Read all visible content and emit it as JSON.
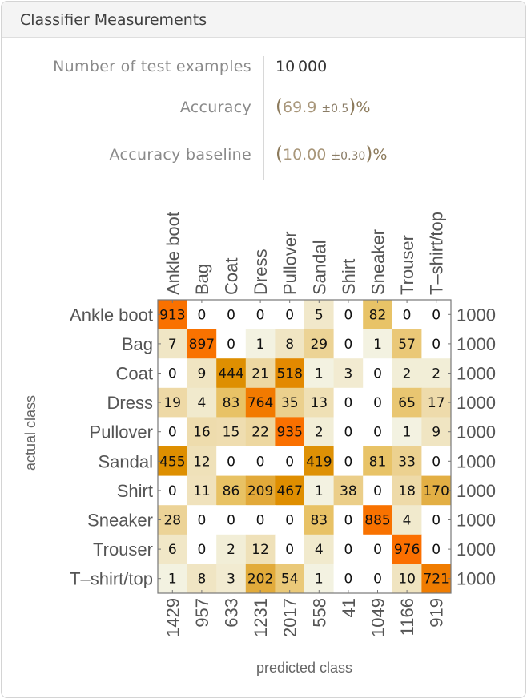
{
  "title": "Classifier Measurements",
  "stats": [
    {
      "label": "Number of test examples",
      "value": "10 000"
    },
    {
      "label": "Accuracy",
      "value": "69.9",
      "uncertainty": "0.5",
      "unit": "%"
    },
    {
      "label": "Accuracy baseline",
      "value": "10.00",
      "uncertainty": "0.30",
      "unit": "%"
    }
  ],
  "chart_data": {
    "type": "heatmap",
    "xlabel": "predicted class",
    "ylabel": "actual class",
    "classes": [
      "Ankle boot",
      "Bag",
      "Coat",
      "Dress",
      "Pullover",
      "Sandal",
      "Shirt",
      "Sneaker",
      "Trouser",
      "T–shirt/top"
    ],
    "matrix": [
      [
        913,
        0,
        0,
        0,
        0,
        5,
        0,
        82,
        0,
        0
      ],
      [
        7,
        897,
        0,
        1,
        8,
        29,
        0,
        1,
        57,
        0
      ],
      [
        0,
        9,
        444,
        21,
        518,
        1,
        3,
        0,
        2,
        2
      ],
      [
        19,
        4,
        83,
        764,
        35,
        13,
        0,
        0,
        65,
        17
      ],
      [
        0,
        16,
        15,
        22,
        935,
        2,
        0,
        0,
        1,
        9
      ],
      [
        455,
        12,
        0,
        0,
        0,
        419,
        0,
        81,
        33,
        0
      ],
      [
        0,
        11,
        86,
        209,
        467,
        1,
        38,
        0,
        18,
        170
      ],
      [
        28,
        0,
        0,
        0,
        0,
        83,
        0,
        885,
        4,
        0
      ],
      [
        6,
        0,
        2,
        12,
        0,
        4,
        0,
        0,
        976,
        0
      ],
      [
        1,
        8,
        3,
        202,
        54,
        1,
        0,
        0,
        10,
        721
      ]
    ],
    "row_totals": [
      1000,
      1000,
      1000,
      1000,
      1000,
      1000,
      1000,
      1000,
      1000,
      1000
    ],
    "column_totals": [
      1429,
      957,
      633,
      1231,
      2017,
      558,
      41,
      1049,
      1166,
      919
    ],
    "color_stops": [
      [
        0,
        "#ffffff"
      ],
      [
        1,
        "#f3f2e1"
      ],
      [
        10,
        "#f0e4c0"
      ],
      [
        30,
        "#ecd294"
      ],
      [
        85,
        "#e8c265"
      ],
      [
        200,
        "#e2ab3c"
      ],
      [
        450,
        "#de8f00"
      ],
      [
        760,
        "#f27a00"
      ],
      [
        950,
        "#fb6f00"
      ]
    ]
  }
}
